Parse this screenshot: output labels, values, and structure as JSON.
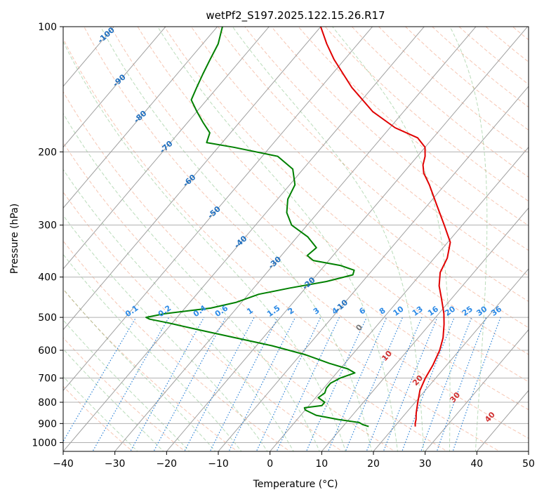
{
  "chart_data": {
    "type": "line",
    "title": "wetPf2_S197.2025.122.15.26.R17",
    "xlabel": "Temperature (°C)",
    "ylabel": "Pressure (hPa)",
    "xlim": [
      -40,
      50
    ],
    "ylim": [
      1050,
      100
    ],
    "y_scale": "log",
    "skew": true,
    "grid": true,
    "x_ticks": [
      -40,
      -30,
      -20,
      -10,
      0,
      10,
      20,
      30,
      40,
      50
    ],
    "y_ticks": [
      100,
      200,
      300,
      400,
      500,
      600,
      700,
      800,
      900,
      1000
    ],
    "series": [
      {
        "role": "temperature",
        "color": "#e00000",
        "points": [
          [
            915,
            24.0
          ],
          [
            900,
            23.5
          ],
          [
            880,
            23.0
          ],
          [
            850,
            22.0
          ],
          [
            800,
            20.5
          ],
          [
            750,
            19.0
          ],
          [
            700,
            18.0
          ],
          [
            650,
            17.3
          ],
          [
            600,
            16.2
          ],
          [
            560,
            14.8
          ],
          [
            520,
            12.8
          ],
          [
            490,
            11.0
          ],
          [
            450,
            8.0
          ],
          [
            420,
            5.5
          ],
          [
            390,
            3.5
          ],
          [
            360,
            2.5
          ],
          [
            330,
            0.5
          ],
          [
            300,
            -3.5
          ],
          [
            270,
            -8.0
          ],
          [
            240,
            -13.0
          ],
          [
            225,
            -16.0
          ],
          [
            215,
            -17.5
          ],
          [
            205,
            -18.5
          ],
          [
            195,
            -20.0
          ],
          [
            185,
            -23.0
          ],
          [
            175,
            -29.0
          ],
          [
            160,
            -36.0
          ],
          [
            140,
            -44.0
          ],
          [
            120,
            -52.0
          ],
          [
            110,
            -56.0
          ],
          [
            100,
            -60.0
          ]
        ]
      },
      {
        "role": "dewpoint",
        "color": "#008000",
        "points": [
          [
            915,
            15.0
          ],
          [
            905,
            13.5
          ],
          [
            895,
            12.5
          ],
          [
            880,
            8.0
          ],
          [
            860,
            3.0
          ],
          [
            835,
            0.0
          ],
          [
            825,
            -0.5
          ],
          [
            815,
            2.5
          ],
          [
            800,
            2.5
          ],
          [
            780,
            0.5
          ],
          [
            760,
            1.0
          ],
          [
            740,
            0.5
          ],
          [
            720,
            0.5
          ],
          [
            700,
            1.5
          ],
          [
            680,
            3.5
          ],
          [
            665,
            1.5
          ],
          [
            645,
            -3.0
          ],
          [
            615,
            -9.0
          ],
          [
            585,
            -17.0
          ],
          [
            555,
            -27.0
          ],
          [
            535,
            -34.0
          ],
          [
            515,
            -41.0
          ],
          [
            505,
            -45.0
          ],
          [
            500,
            -46.0
          ],
          [
            490,
            -43.0
          ],
          [
            475,
            -35.0
          ],
          [
            460,
            -31.0
          ],
          [
            440,
            -28.0
          ],
          [
            425,
            -23.0
          ],
          [
            410,
            -17.0
          ],
          [
            395,
            -13.0
          ],
          [
            385,
            -13.5
          ],
          [
            375,
            -17.0
          ],
          [
            365,
            -23.0
          ],
          [
            355,
            -25.0
          ],
          [
            340,
            -24.5
          ],
          [
            320,
            -28.0
          ],
          [
            300,
            -33.0
          ],
          [
            280,
            -36.0
          ],
          [
            260,
            -38.0
          ],
          [
            240,
            -39.0
          ],
          [
            220,
            -42.0
          ],
          [
            205,
            -47.0
          ],
          [
            195,
            -57.0
          ],
          [
            190,
            -63.0
          ],
          [
            180,
            -64.0
          ],
          [
            170,
            -67.0
          ],
          [
            160,
            -70.0
          ],
          [
            150,
            -73.0
          ],
          [
            140,
            -74.0
          ],
          [
            130,
            -75.0
          ],
          [
            120,
            -76.0
          ],
          [
            110,
            -77.0
          ],
          [
            100,
            -79.0
          ]
        ]
      }
    ],
    "isotherm_labels": [
      "-100",
      "-90",
      "-80",
      "-70",
      "-60",
      "-50",
      "-40",
      "-30",
      "-20",
      "-10"
    ],
    "mixing_ratio_labels": [
      "0.1",
      "0.2",
      "0.4",
      "0.6",
      "1",
      "1.5",
      "2",
      "3",
      "4",
      "6",
      "8",
      "10",
      "13",
      "16",
      "20",
      "25",
      "30",
      "36"
    ],
    "moist_adiabat_labels": [
      "0",
      "10",
      "20",
      "30",
      "40"
    ]
  }
}
